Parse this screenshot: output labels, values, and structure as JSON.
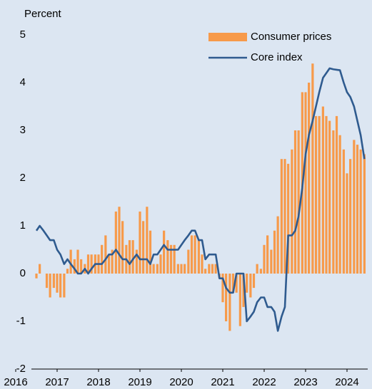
{
  "chart_data": {
    "type": "combo",
    "y_axis_label": "Percent",
    "legend": "top-right",
    "x": [
      2016.5,
      2016.58,
      2016.67,
      2016.75,
      2016.83,
      2016.92,
      2017.0,
      2017.08,
      2017.17,
      2017.25,
      2017.33,
      2017.42,
      2017.5,
      2017.58,
      2017.67,
      2017.75,
      2017.83,
      2017.92,
      2018.0,
      2018.08,
      2018.17,
      2018.25,
      2018.33,
      2018.42,
      2018.5,
      2018.58,
      2018.67,
      2018.75,
      2018.83,
      2018.92,
      2019.0,
      2019.08,
      2019.17,
      2019.25,
      2019.33,
      2019.42,
      2019.5,
      2019.58,
      2019.67,
      2019.75,
      2019.83,
      2019.92,
      2020.0,
      2020.08,
      2020.17,
      2020.25,
      2020.33,
      2020.42,
      2020.5,
      2020.58,
      2020.67,
      2020.75,
      2020.83,
      2020.92,
      2021.0,
      2021.08,
      2021.17,
      2021.25,
      2021.33,
      2021.42,
      2021.5,
      2021.58,
      2021.67,
      2021.75,
      2021.83,
      2021.92,
      2022.0,
      2022.08,
      2022.17,
      2022.25,
      2022.33,
      2022.42,
      2022.5,
      2022.58,
      2022.67,
      2022.75,
      2022.83,
      2022.92,
      2023.0,
      2023.08,
      2023.17,
      2023.25,
      2023.33,
      2023.42,
      2023.5,
      2023.58,
      2023.67,
      2023.75,
      2023.83,
      2023.92,
      2024.0,
      2024.08,
      2024.17,
      2024.25,
      2024.33,
      2024.42
    ],
    "series": [
      {
        "name": "Consumer prices",
        "type": "bar",
        "color": "#f79a4a",
        "values": [
          -0.1,
          0.2,
          0,
          -0.3,
          -0.5,
          -0.3,
          -0.4,
          -0.5,
          -0.5,
          0.1,
          0.5,
          0.3,
          0.5,
          0.3,
          0.2,
          0.4,
          0.4,
          0.4,
          0.4,
          0.6,
          0.8,
          0.4,
          0.5,
          1.3,
          1.4,
          1.1,
          0.6,
          0.7,
          0.7,
          0.5,
          1.3,
          1.1,
          1.4,
          0.9,
          0.2,
          0.2,
          0.4,
          0.9,
          0.7,
          0.6,
          0.6,
          0.2,
          0.2,
          0.2,
          0.5,
          0.8,
          0.8,
          0.7,
          0.4,
          0.1,
          0.2,
          0.2,
          0.2,
          -0.1,
          -0.6,
          -1.0,
          -1.2,
          -0.4,
          -0.4,
          -1.1,
          -0.7,
          -0.4,
          -0.5,
          -0.3,
          0.2,
          0.1,
          0.6,
          0.8,
          0.5,
          0.9,
          1.2,
          2.4,
          2.4,
          2.3,
          2.6,
          3.0,
          3.0,
          3.8,
          3.8,
          4.0,
          4.4,
          3.3,
          3.3,
          3.5,
          3.3,
          3.2,
          3.0,
          3.3,
          2.9,
          2.6,
          2.1,
          2.4,
          2.8,
          2.7,
          2.6,
          2.5
        ]
      },
      {
        "name": "Core index",
        "type": "line",
        "color": "#2f5b8f",
        "values": [
          0.9,
          1.0,
          0.9,
          0.8,
          0.7,
          0.7,
          0.5,
          0.4,
          0.2,
          0.3,
          0.2,
          0.1,
          0.0,
          0.0,
          0.1,
          0.0,
          0.1,
          0.2,
          0.2,
          0.2,
          0.3,
          0.4,
          0.4,
          0.5,
          0.4,
          0.3,
          0.3,
          0.2,
          0.3,
          0.4,
          0.3,
          0.3,
          0.3,
          0.2,
          0.4,
          0.4,
          0.5,
          0.6,
          0.5,
          0.5,
          0.5,
          0.5,
          0.6,
          0.7,
          0.8,
          0.9,
          0.9,
          0.7,
          0.7,
          0.3,
          0.4,
          0.4,
          0.4,
          -0.1,
          -0.1,
          -0.3,
          -0.4,
          -0.4,
          0.0,
          0.0,
          0.0,
          -1.0,
          -0.9,
          -0.8,
          -0.6,
          -0.5,
          -0.5,
          -0.7,
          -0.7,
          -0.8,
          -1.2,
          -0.9,
          -0.7,
          0.8,
          0.8,
          0.9,
          1.2,
          1.8,
          2.5,
          2.9,
          3.2,
          3.5,
          3.8,
          4.1,
          4.2,
          4.3,
          4.28,
          4.27,
          4.26,
          4.0,
          3.8,
          3.7,
          3.5,
          3.2,
          2.9,
          2.4
        ]
      }
    ],
    "xlim": [
      2016,
      2024.5
    ],
    "xticks": [
      2016,
      2017,
      2018,
      2019,
      2020,
      2021,
      2022,
      2023,
      2024
    ],
    "ylim": [
      -2,
      5
    ],
    "yticks": [
      -2,
      -1,
      0,
      1,
      2,
      3,
      4,
      5
    ]
  }
}
